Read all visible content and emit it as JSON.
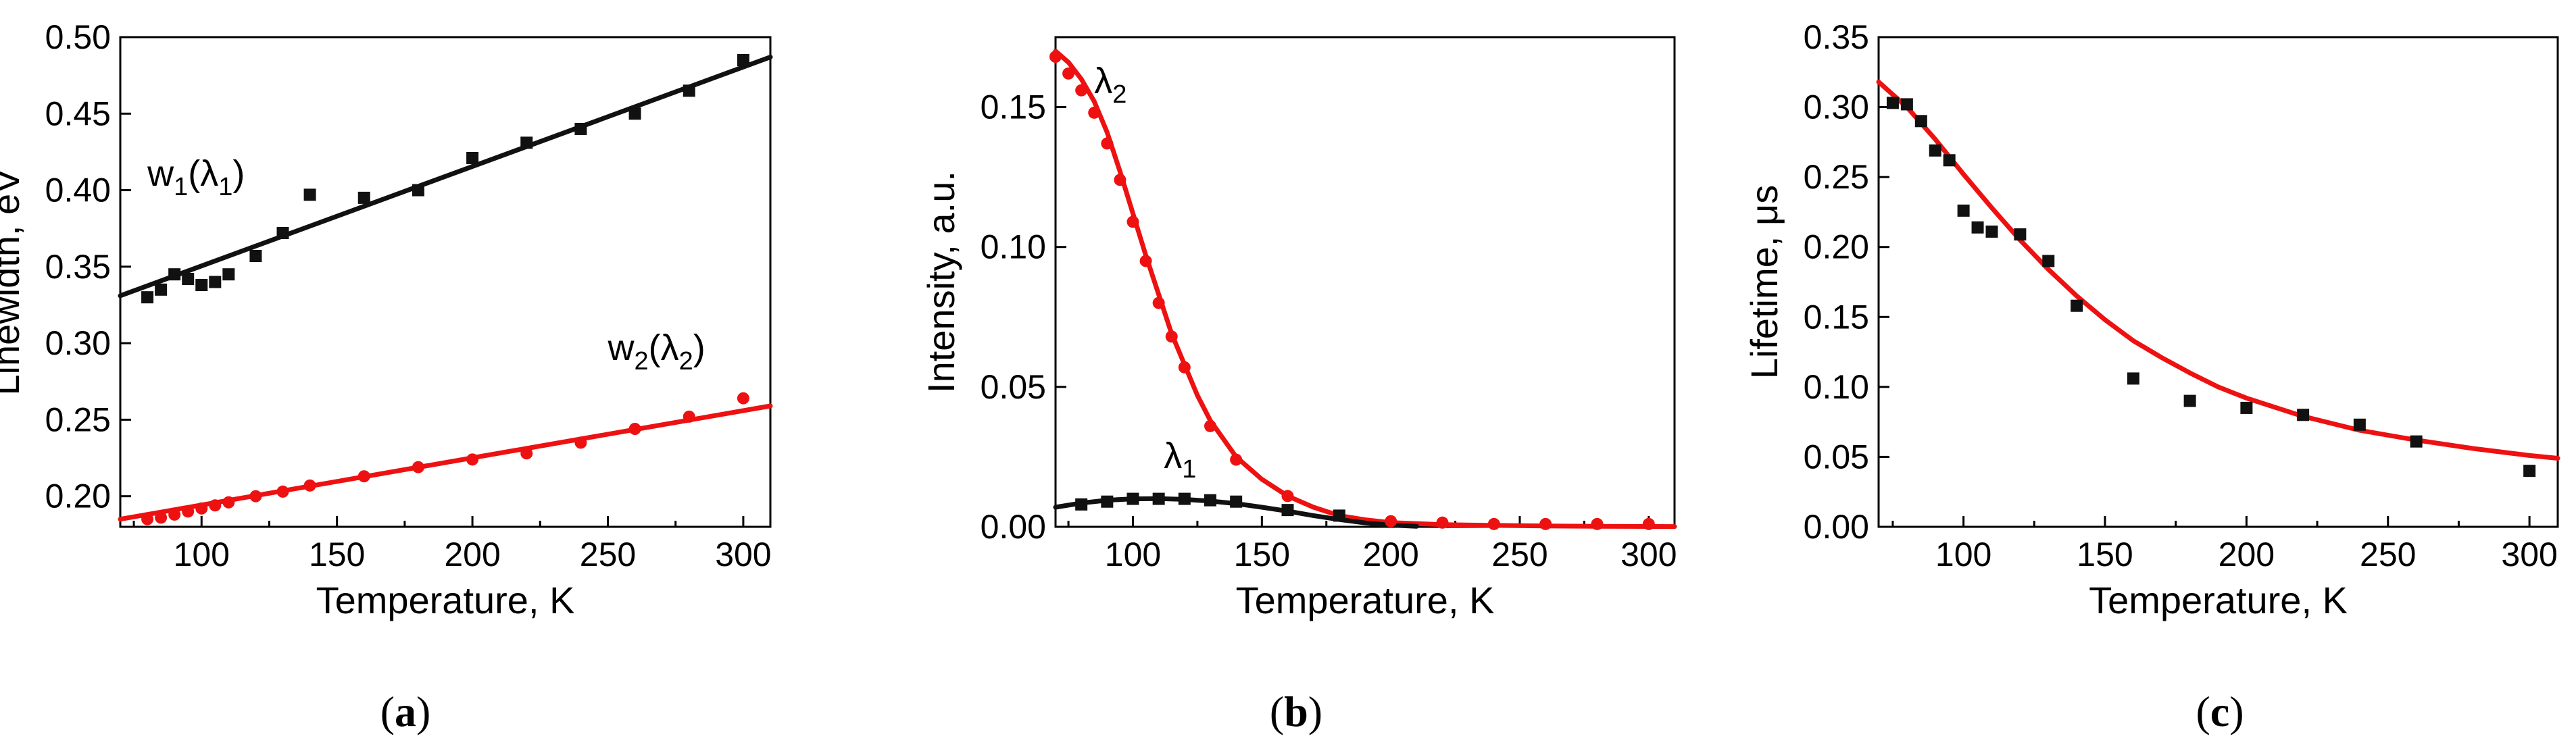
{
  "colors": {
    "black": "#111111",
    "red": "#ee1111"
  },
  "chart_data": [
    {
      "type": "scatter",
      "panel_label": "(a)",
      "panel_letter": "a",
      "xlabel": "Temperature, K",
      "ylabel": "Linewidth, eV",
      "xlim": [
        70,
        310
      ],
      "ylim": [
        0.18,
        0.5
      ],
      "xticks": [
        100,
        150,
        200,
        250,
        300
      ],
      "yticks": [
        0.2,
        0.25,
        0.3,
        0.35,
        0.4,
        0.45,
        0.5
      ],
      "ytick_labels": [
        "0.20",
        "0.25",
        "0.30",
        "0.35",
        "0.40",
        "0.45",
        "0.50"
      ],
      "series": [
        {
          "name": "w1(λ1)",
          "label_main": "w",
          "label_sub1": "1",
          "label_mid": "(λ",
          "label_sub2": "1",
          "label_end": ")",
          "label_at": [
            80,
            0.403
          ],
          "color": "#111111",
          "marker": "square",
          "x": [
            80,
            85,
            90,
            95,
            100,
            105,
            110,
            120,
            130,
            140,
            160,
            180,
            200,
            220,
            240,
            260,
            280,
            300
          ],
          "y": [
            0.33,
            0.335,
            0.345,
            0.342,
            0.338,
            0.34,
            0.345,
            0.357,
            0.372,
            0.397,
            0.395,
            0.4,
            0.421,
            0.431,
            0.44,
            0.45,
            0.465,
            0.485
          ],
          "fit": {
            "kind": "linear",
            "x": [
              70,
              310
            ],
            "y": [
              0.331,
              0.487
            ]
          }
        },
        {
          "name": "w2(λ2)",
          "label_main": "w",
          "label_sub1": "2",
          "label_mid": "(λ",
          "label_sub2": "2",
          "label_end": ")",
          "label_at": [
            250,
            0.289
          ],
          "color": "#ee1111",
          "marker": "circle",
          "x": [
            80,
            85,
            90,
            95,
            100,
            105,
            110,
            120,
            130,
            140,
            160,
            180,
            200,
            220,
            240,
            260,
            280,
            300
          ],
          "y": [
            0.185,
            0.186,
            0.188,
            0.19,
            0.192,
            0.194,
            0.196,
            0.2,
            0.203,
            0.207,
            0.213,
            0.219,
            0.224,
            0.228,
            0.235,
            0.244,
            0.252,
            0.264
          ],
          "fit": {
            "kind": "linear",
            "x": [
              70,
              310
            ],
            "y": [
              0.185,
              0.259
            ]
          }
        }
      ]
    },
    {
      "type": "scatter",
      "panel_label": "(b)",
      "panel_letter": "b",
      "xlabel": "Temperature, K",
      "ylabel": "Intensity, a.u.",
      "xlim": [
        70,
        310
      ],
      "ylim": [
        0.0,
        0.175
      ],
      "xticks": [
        100,
        150,
        200,
        250,
        300
      ],
      "yticks": [
        0.0,
        0.05,
        0.1,
        0.15
      ],
      "ytick_labels": [
        "0.00",
        "0.05",
        "0.10",
        "0.15"
      ],
      "series": [
        {
          "name": "λ2",
          "label_main": "λ",
          "label_sub1": "2",
          "label_at": [
            85,
            0.155
          ],
          "color": "#ee1111",
          "marker": "circle",
          "x": [
            70,
            75,
            80,
            85,
            90,
            95,
            100,
            105,
            110,
            115,
            120,
            130,
            140,
            160,
            180,
            200,
            220,
            240,
            260,
            280,
            300
          ],
          "y": [
            0.168,
            0.162,
            0.156,
            0.148,
            0.137,
            0.124,
            0.109,
            0.095,
            0.08,
            0.068,
            0.057,
            0.036,
            0.024,
            0.011,
            0.004,
            0.002,
            0.0015,
            0.001,
            0.001,
            0.001,
            0.001
          ],
          "fit": {
            "kind": "smooth",
            "x": [
              70,
              75,
              80,
              85,
              90,
              95,
              100,
              105,
              110,
              115,
              120,
              125,
              130,
              140,
              150,
              160,
              170,
              180,
              190,
              200,
              220,
              240,
              260,
              280,
              310
            ],
            "y": [
              0.17,
              0.166,
              0.16,
              0.152,
              0.141,
              0.127,
              0.112,
              0.097,
              0.083,
              0.069,
              0.058,
              0.047,
              0.038,
              0.025,
              0.017,
              0.011,
              0.007,
              0.004,
              0.0025,
              0.0015,
              0.0008,
              0.0005,
              0.0003,
              0.0002,
              0.0001
            ]
          }
        },
        {
          "name": "λ1",
          "label_main": "λ",
          "label_sub1": "1",
          "label_at": [
            112,
            0.021
          ],
          "color": "#111111",
          "marker": "square",
          "x": [
            80,
            90,
            100,
            110,
            120,
            130,
            140,
            160,
            180
          ],
          "y": [
            0.008,
            0.009,
            0.01,
            0.01,
            0.01,
            0.0095,
            0.009,
            0.006,
            0.004
          ],
          "fit": {
            "kind": "smooth",
            "x": [
              70,
              80,
              90,
              100,
              110,
              120,
              130,
              140,
              150,
              160,
              170,
              180,
              190,
              200,
              210
            ],
            "y": [
              0.007,
              0.0085,
              0.0095,
              0.01,
              0.0101,
              0.0098,
              0.0092,
              0.0083,
              0.007,
              0.0056,
              0.004,
              0.0026,
              0.0014,
              0.0006,
              0.0002
            ]
          }
        }
      ]
    },
    {
      "type": "scatter",
      "panel_label": "(c)",
      "panel_letter": "c",
      "xlabel": "Temperature, K",
      "ylabel": "Lifetime, μs",
      "xlim": [
        70,
        310
      ],
      "ylim": [
        0.0,
        0.35
      ],
      "xticks": [
        100,
        150,
        200,
        250,
        300
      ],
      "yticks": [
        0.0,
        0.05,
        0.1,
        0.15,
        0.2,
        0.25,
        0.3,
        0.35
      ],
      "ytick_labels": [
        "0.00",
        "0.05",
        "0.10",
        "0.15",
        "0.20",
        "0.25",
        "0.30",
        "0.35"
      ],
      "series": [
        {
          "name": "lifetime",
          "color": "#111111",
          "marker": "square",
          "x": [
            75,
            80,
            85,
            90,
            95,
            100,
            105,
            110,
            120,
            130,
            140,
            160,
            180,
            200,
            220,
            240,
            260,
            300
          ],
          "y": [
            0.303,
            0.302,
            0.29,
            0.269,
            0.262,
            0.226,
            0.214,
            0.211,
            0.209,
            0.19,
            0.158,
            0.106,
            0.09,
            0.085,
            0.08,
            0.073,
            0.061,
            0.04
          ],
          "fit": {
            "kind": "smooth",
            "color": "#ee1111",
            "x": [
              70,
              80,
              90,
              100,
              110,
              120,
              130,
              140,
              150,
              160,
              170,
              180,
              190,
              200,
              220,
              240,
              260,
              280,
              300,
              310
            ],
            "y": [
              0.318,
              0.3,
              0.277,
              0.252,
              0.228,
              0.205,
              0.184,
              0.165,
              0.148,
              0.133,
              0.121,
              0.11,
              0.1,
              0.092,
              0.079,
              0.069,
              0.062,
              0.056,
              0.051,
              0.049
            ]
          }
        }
      ]
    }
  ]
}
